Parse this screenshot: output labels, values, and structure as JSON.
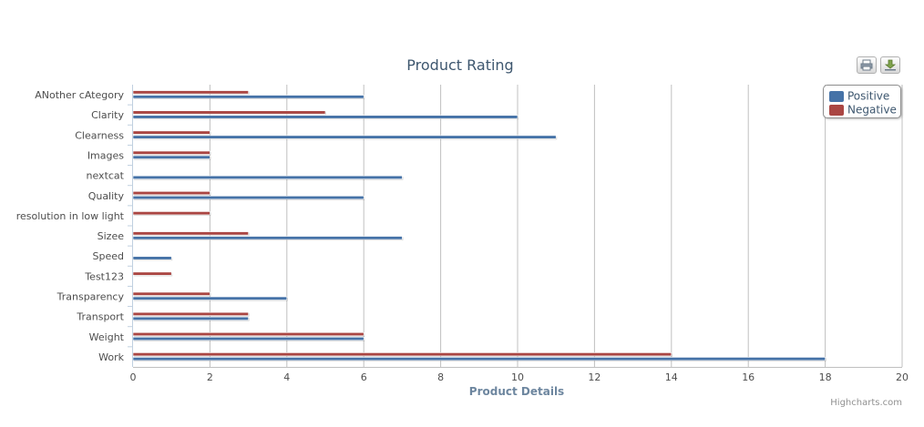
{
  "chart_data": {
    "type": "bar",
    "orientation": "horizontal",
    "title": "Product Rating",
    "xlabel": "Product Details",
    "ylabel": "",
    "categories": [
      "ANother cAtegory",
      "Clarity",
      "Clearness",
      "Images",
      "nextcat",
      "Quality",
      "resolution in low light",
      "Sizee",
      "Speed",
      "Test123",
      "Transparency",
      "Transport",
      "Weight",
      "Work"
    ],
    "series": [
      {
        "name": "Positive",
        "color": "#4572a7",
        "values": [
          6,
          10,
          11,
          2,
          7,
          6,
          0,
          7,
          1,
          0,
          4,
          3,
          6,
          18
        ]
      },
      {
        "name": "Negative",
        "color": "#aa4643",
        "values": [
          3,
          5,
          2,
          2,
          0,
          2,
          2,
          3,
          0,
          1,
          2,
          3,
          6,
          14
        ]
      }
    ],
    "xlim": [
      0,
      20
    ],
    "ticks": [
      0,
      2,
      4,
      6,
      8,
      10,
      12,
      14,
      16,
      18,
      20
    ],
    "grid": true,
    "legend_position": "top-right"
  },
  "credits": "Highcharts.com",
  "icons": {
    "print": "printer-icon",
    "export": "download-icon"
  }
}
